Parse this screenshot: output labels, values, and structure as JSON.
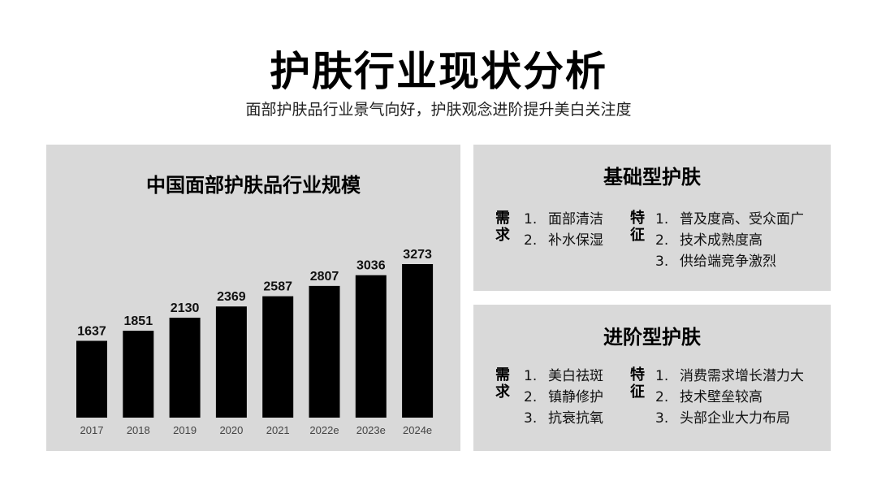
{
  "header": {
    "title": "护肤行业现状分析",
    "subtitle": "面部护肤品行业景气向好，护肤观念进阶提升美白关注度"
  },
  "chart_data": {
    "type": "bar",
    "title": "中国面部护肤品行业规模",
    "categories": [
      "2017",
      "2018",
      "2019",
      "2020",
      "2021",
      "2022e",
      "2023e",
      "2024e"
    ],
    "values": [
      1637,
      1851,
      2130,
      2369,
      2587,
      2807,
      3036,
      3273
    ],
    "value_labels": [
      "1637",
      "1851",
      "2130",
      "2369",
      "2587",
      "2807",
      "3036",
      "3273"
    ],
    "xlabel": "",
    "ylabel": "",
    "ylim": [
      0,
      3273
    ],
    "bar_color": "#000000",
    "grid": false,
    "legend": "none"
  },
  "cards": {
    "basic": {
      "title": "基础型护肤",
      "need_label": [
        "需",
        "求"
      ],
      "feature_label": [
        "特",
        "征"
      ],
      "needs": [
        {
          "num": "1.",
          "text": "面部清洁"
        },
        {
          "num": "2.",
          "text": "补水保湿"
        }
      ],
      "features": [
        {
          "num": "1.",
          "text": "普及度高、受众面广"
        },
        {
          "num": "2.",
          "text": "技术成熟度高"
        },
        {
          "num": "3.",
          "text": "供给端竞争激烈"
        }
      ]
    },
    "advanced": {
      "title": "进阶型护肤",
      "need_label": [
        "需",
        "求"
      ],
      "feature_label": [
        "特",
        "征"
      ],
      "needs": [
        {
          "num": "1.",
          "text": "美白祛斑"
        },
        {
          "num": "2.",
          "text": "镇静修护"
        },
        {
          "num": "3.",
          "text": "抗衰抗氧"
        }
      ],
      "features": [
        {
          "num": "1.",
          "text": "消费需求增长潜力大"
        },
        {
          "num": "2.",
          "text": "技术壁垒较高"
        },
        {
          "num": "3.",
          "text": "头部企业大力布局"
        }
      ]
    }
  },
  "colors": {
    "panel_bg": "#d9d9d9",
    "bar": "#000000",
    "axis_label": "#444444"
  }
}
